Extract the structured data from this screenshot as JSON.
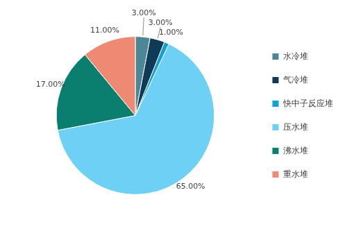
{
  "chart_data": {
    "type": "pie",
    "categories": [
      "水冷堆",
      "气冷堆",
      "快中子反应堆",
      "压水堆",
      "沸水堆",
      "重水堆"
    ],
    "values": [
      3,
      3,
      1,
      65,
      17,
      11
    ],
    "value_labels": [
      "3.00%",
      "3.00%",
      "1.00%",
      "65.00%",
      "17.00%",
      "11.00%"
    ],
    "colors": [
      "#4d8797",
      "#0f3b58",
      "#12a0d7",
      "#6fd0f5",
      "#0a7f70",
      "#ee8a73"
    ],
    "legend": "right",
    "data_labels": true
  }
}
